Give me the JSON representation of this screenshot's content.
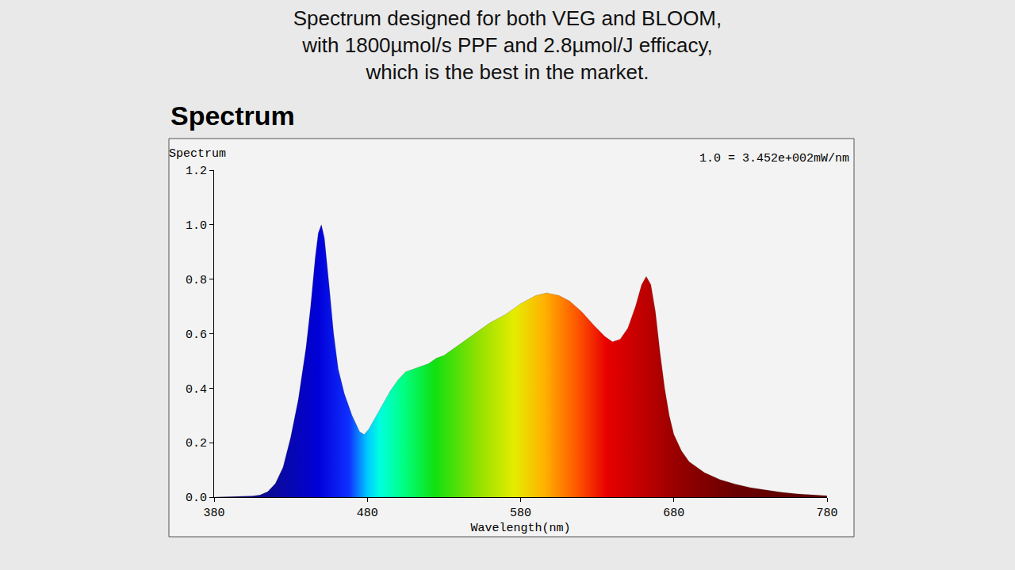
{
  "chart_data": {
    "type": "area",
    "title": "Spectrum designed for both VEG and BLOOM, with 1800µmol/s PPF and 2.8µmol/J efficacy, which is the best in the market.",
    "subtitle": "Spectrum",
    "y_label": "Spectrum",
    "x_label": "Wavelength(nm)",
    "annotations": [
      "1.0 = 3.452e+002mW/nm"
    ],
    "x": [
      380,
      390,
      400,
      405,
      410,
      415,
      420,
      425,
      430,
      435,
      440,
      443,
      446,
      448,
      450,
      452,
      455,
      458,
      461,
      465,
      470,
      475,
      478,
      481,
      485,
      490,
      495,
      500,
      505,
      510,
      515,
      520,
      525,
      530,
      540,
      550,
      560,
      570,
      580,
      590,
      597,
      605,
      612,
      620,
      628,
      635,
      640,
      645,
      650,
      655,
      659,
      662,
      665,
      668,
      671,
      674,
      677,
      680,
      685,
      690,
      695,
      700,
      710,
      720,
      730,
      740,
      750,
      760,
      770,
      780
    ],
    "values": [
      0,
      0.001,
      0.002,
      0.004,
      0.008,
      0.02,
      0.05,
      0.11,
      0.22,
      0.36,
      0.55,
      0.7,
      0.88,
      0.97,
      1.0,
      0.95,
      0.78,
      0.6,
      0.47,
      0.38,
      0.3,
      0.24,
      0.23,
      0.25,
      0.29,
      0.34,
      0.39,
      0.43,
      0.46,
      0.47,
      0.48,
      0.49,
      0.51,
      0.52,
      0.56,
      0.6,
      0.64,
      0.67,
      0.71,
      0.74,
      0.75,
      0.74,
      0.72,
      0.68,
      0.63,
      0.59,
      0.57,
      0.58,
      0.62,
      0.7,
      0.78,
      0.81,
      0.78,
      0.68,
      0.53,
      0.4,
      0.3,
      0.23,
      0.17,
      0.13,
      0.11,
      0.09,
      0.065,
      0.048,
      0.035,
      0.026,
      0.018,
      0.012,
      0.008,
      0.005
    ],
    "xlim": [
      380,
      780
    ],
    "xticks": [
      380,
      480,
      580,
      680,
      780
    ],
    "ylim": [
      0,
      1.2
    ],
    "yticks": [
      {
        "value": 0,
        "label": "0.0"
      },
      0.2,
      0.4,
      0.6,
      0.8,
      {
        "value": 1,
        "label": "1.0"
      },
      1.2
    ],
    "grid": false
  }
}
